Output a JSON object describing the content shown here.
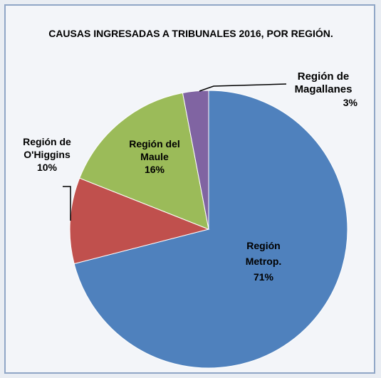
{
  "chart_data": {
    "type": "pie",
    "title": "CAUSAS INGRESADAS A TRIBUNALES 2016, POR REGIÓN.",
    "categories": [
      "Región Metrop.",
      "Región de O'Higgins",
      "Región del Maule",
      "Región de Magallanes"
    ],
    "values": [
      71,
      10,
      16,
      3
    ],
    "value_labels": [
      "71%",
      "10%",
      "16%",
      "3%"
    ],
    "colors": [
      "#4f81bd",
      "#c0504d",
      "#9bbb59",
      "#8064a2"
    ]
  }
}
